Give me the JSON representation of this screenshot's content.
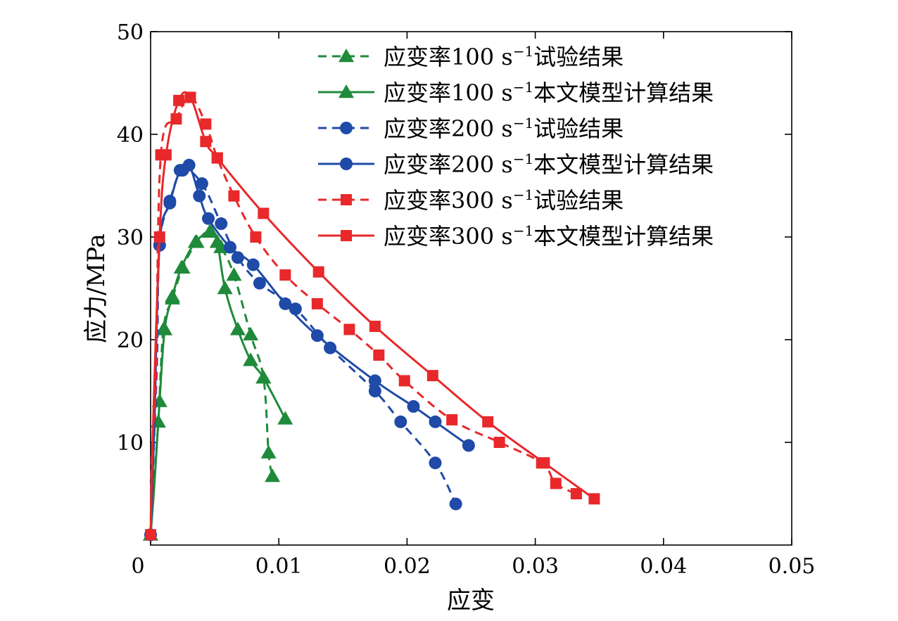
{
  "chart_data": {
    "type": "line",
    "xlabel": "应变",
    "ylabel": "应力/MPa",
    "xlim": [
      0,
      0.05
    ],
    "ylim": [
      0,
      50
    ],
    "xticks": [
      0,
      0.01,
      0.02,
      0.03,
      0.04,
      0.05
    ],
    "xtick_labels": [
      "0",
      "0.01",
      "0.02",
      "0.03",
      "0.04",
      "0.05"
    ],
    "yticks": [
      10,
      20,
      30,
      40,
      50
    ],
    "ytick_labels": [
      "10",
      "20",
      "30",
      "40",
      "50"
    ],
    "grid": false,
    "legend_position": "top-right",
    "series": [
      {
        "name": "应变率100 s⁻¹试验结果",
        "color": "#1f8a3a",
        "marker": "triangle",
        "line_style": "dashed",
        "points": [
          [
            0.0,
            1.0
          ],
          [
            0.0002,
            5.0
          ],
          [
            0.0006,
            12.0
          ],
          [
            0.001,
            21.0
          ],
          [
            0.0017,
            24.0
          ],
          [
            0.0025,
            27.0
          ],
          [
            0.0036,
            29.5
          ],
          [
            0.0046,
            30.5
          ],
          [
            0.0055,
            29.0
          ],
          [
            0.0065,
            26.3
          ],
          [
            0.0078,
            20.5
          ],
          [
            0.0088,
            16.3
          ],
          [
            0.0092,
            9.0
          ],
          [
            0.0095,
            6.7
          ]
        ]
      },
      {
        "name": "应变率100 s⁻¹本文模型计算结果",
        "color": "#1f8a3a",
        "marker": "triangle",
        "line_style": "solid",
        "points": [
          [
            0.0,
            1.0
          ],
          [
            0.0003,
            6.0
          ],
          [
            0.0007,
            14.0
          ],
          [
            0.0011,
            21.0
          ],
          [
            0.0017,
            24.2
          ],
          [
            0.0024,
            27.0
          ],
          [
            0.0035,
            29.5
          ],
          [
            0.0047,
            30.5
          ],
          [
            0.0052,
            29.5
          ],
          [
            0.0058,
            25.0
          ],
          [
            0.0068,
            21.0
          ],
          [
            0.0078,
            18.0
          ],
          [
            0.0088,
            16.3
          ],
          [
            0.0105,
            12.3
          ]
        ]
      },
      {
        "name": "应变率200 s⁻¹试验结果",
        "color": "#1f4aa8",
        "marker": "circle",
        "line_style": "dashed",
        "points": [
          [
            0.0,
            1.0
          ],
          [
            0.0002,
            8.0
          ],
          [
            0.0005,
            18.0
          ],
          [
            0.0007,
            29.2
          ],
          [
            0.0015,
            33.5
          ],
          [
            0.0025,
            36.5
          ],
          [
            0.004,
            35.2
          ],
          [
            0.0055,
            31.3
          ],
          [
            0.0068,
            28.0
          ],
          [
            0.0085,
            25.5
          ],
          [
            0.0113,
            23.0
          ],
          [
            0.014,
            19.2
          ],
          [
            0.0175,
            15.0
          ],
          [
            0.0195,
            12.0
          ],
          [
            0.0222,
            8.0
          ],
          [
            0.0238,
            4.0
          ]
        ]
      },
      {
        "name": "应变率200 s⁻¹本文模型计算结果",
        "color": "#1f4aa8",
        "marker": "circle",
        "line_style": "solid",
        "points": [
          [
            0.0,
            1.0
          ],
          [
            0.0003,
            12.0
          ],
          [
            0.0007,
            29.2
          ],
          [
            0.0015,
            33.3
          ],
          [
            0.0023,
            36.5
          ],
          [
            0.003,
            37.0
          ],
          [
            0.0038,
            34.0
          ],
          [
            0.0045,
            31.8
          ],
          [
            0.0062,
            29.0
          ],
          [
            0.008,
            27.3
          ],
          [
            0.0105,
            23.5
          ],
          [
            0.013,
            20.4
          ],
          [
            0.0175,
            16.0
          ],
          [
            0.0205,
            13.5
          ],
          [
            0.0222,
            12.0
          ],
          [
            0.0248,
            9.7
          ]
        ]
      },
      {
        "name": "应变率300 s⁻¹试验结果",
        "color": "#e8282a",
        "marker": "square",
        "line_style": "dashed",
        "points": [
          [
            0.0,
            1.0
          ],
          [
            0.0001,
            9.0
          ],
          [
            0.0004,
            16.0
          ],
          [
            0.0008,
            38.0
          ],
          [
            0.002,
            41.5
          ],
          [
            0.0031,
            43.6
          ],
          [
            0.0043,
            41.0
          ],
          [
            0.0052,
            37.7
          ],
          [
            0.0065,
            34.0
          ],
          [
            0.0082,
            30.0
          ],
          [
            0.0105,
            26.3
          ],
          [
            0.013,
            23.5
          ],
          [
            0.0155,
            21.0
          ],
          [
            0.0178,
            18.5
          ],
          [
            0.0198,
            16.0
          ],
          [
            0.0235,
            12.2
          ],
          [
            0.0272,
            10.0
          ],
          [
            0.0305,
            8.0
          ],
          [
            0.0316,
            6.0
          ],
          [
            0.0332,
            5.0
          ]
        ]
      },
      {
        "name": "应变率300 s⁻¹本文模型计算结果",
        "color": "#e8282a",
        "marker": "square",
        "line_style": "solid",
        "points": [
          [
            0.0,
            1.0
          ],
          [
            0.0002,
            12.0
          ],
          [
            0.0007,
            30.0
          ],
          [
            0.0012,
            38.0
          ],
          [
            0.0022,
            43.3
          ],
          [
            0.0031,
            43.6
          ],
          [
            0.0043,
            39.3
          ],
          [
            0.0052,
            37.7
          ],
          [
            0.0088,
            32.3
          ],
          [
            0.0131,
            26.6
          ],
          [
            0.0175,
            21.3
          ],
          [
            0.022,
            16.5
          ],
          [
            0.0263,
            12.0
          ],
          [
            0.0307,
            8.0
          ],
          [
            0.0346,
            4.5
          ]
        ]
      }
    ]
  },
  "legend": {
    "entries": [
      {
        "prefix": "应变率100 s",
        "sup": "−1",
        "suffix": "试验结果"
      },
      {
        "prefix": "应变率100 s",
        "sup": "−1",
        "suffix": "本文模型计算结果"
      },
      {
        "prefix": "应变率200 s",
        "sup": "−1",
        "suffix": "试验结果"
      },
      {
        "prefix": "应变率200 s",
        "sup": "−1",
        "suffix": "本文模型计算结果"
      },
      {
        "prefix": "应变率300 s",
        "sup": "−1",
        "suffix": "试验结果"
      },
      {
        "prefix": "应变率300 s",
        "sup": "−1",
        "suffix": "本文模型计算结果"
      }
    ]
  }
}
